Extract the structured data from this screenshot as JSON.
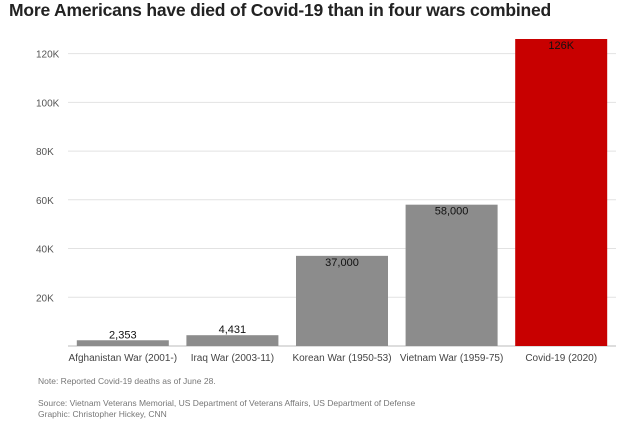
{
  "chart_data": {
    "type": "bar",
    "title": "More Americans have died of Covid-19 than in four wars combined",
    "categories": [
      "Afghanistan War (2001-)",
      "Iraq War (2003-11)",
      "Korean War (1950-53)",
      "Vietnam War (1959-75)",
      "Covid-19 (2020)"
    ],
    "values": [
      2353,
      4431,
      37000,
      58000,
      126000
    ],
    "data_labels": [
      "2,353",
      "4,431",
      "37,000",
      "58,000",
      "126K"
    ],
    "bar_colors": [
      "#8c8c8c",
      "#8c8c8c",
      "#8c8c8c",
      "#8c8c8c",
      "#c80000"
    ],
    "yticks": [
      0,
      20000,
      40000,
      60000,
      80000,
      100000,
      120000
    ],
    "ytick_labels": [
      "",
      "20K",
      "40K",
      "60K",
      "80K",
      "100K",
      "120K"
    ],
    "ylim": [
      0,
      126000
    ],
    "xlabel": "",
    "ylabel": "",
    "grid": true,
    "legend": "none"
  },
  "notes": {
    "note": "Note: Reported Covid-19 deaths as of June 28.",
    "source": "Source: Vietnam Veterans Memorial, US Department of Veterans Affairs, US Department of Defense",
    "graphic": "Graphic: Christopher Hickey, CNN"
  }
}
